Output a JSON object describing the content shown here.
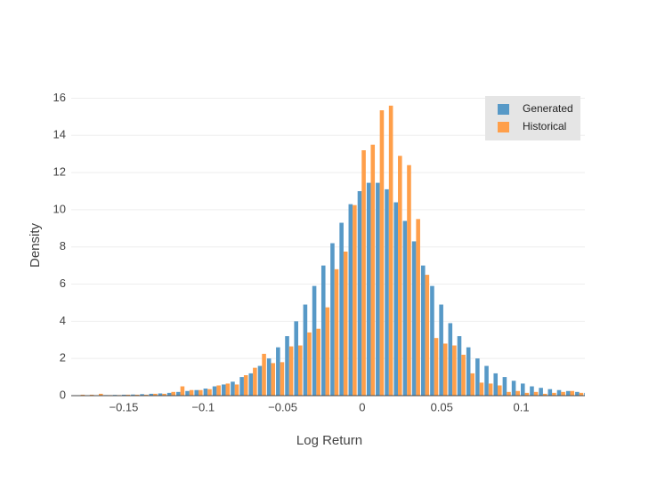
{
  "chart_data": {
    "type": "histogram",
    "x_label": "Log Return",
    "y_label": "Density",
    "bins": [
      -0.1799,
      -0.1742,
      -0.1685,
      -0.1628,
      -0.1571,
      -0.1514,
      -0.1457,
      -0.14,
      -0.1343,
      -0.1286,
      -0.1229,
      -0.1172,
      -0.1115,
      -0.1058,
      -0.1001,
      -0.0944,
      -0.0887,
      -0.083,
      -0.0773,
      -0.0716,
      -0.0659,
      -0.0602,
      -0.0545,
      -0.0488,
      -0.0431,
      -0.0374,
      -0.0317,
      -0.026,
      -0.0203,
      -0.0146,
      -0.0089,
      -0.0032,
      0.0025,
      0.0082,
      0.0139,
      0.0196,
      0.0253,
      0.031,
      0.0367,
      0.0424,
      0.0481,
      0.0538,
      0.0595,
      0.0652,
      0.0709,
      0.0766,
      0.0823,
      0.088,
      0.0937,
      0.0994,
      0.1051,
      0.1108,
      0.1165,
      0.1222,
      0.1279,
      0.1336,
      0.1393,
      0.145
    ],
    "series": [
      {
        "name": "Generated",
        "color": "#5799c7",
        "values": [
          0.01,
          0.02,
          0.02,
          0.03,
          0.04,
          0.05,
          0.06,
          0.08,
          0.1,
          0.12,
          0.15,
          0.2,
          0.25,
          0.3,
          0.38,
          0.5,
          0.6,
          0.75,
          1.0,
          1.2,
          1.6,
          2.0,
          2.6,
          3.2,
          4.0,
          4.9,
          5.9,
          7.0,
          8.2,
          9.3,
          10.3,
          11.0,
          11.45,
          11.45,
          11.1,
          10.4,
          9.4,
          8.3,
          7.0,
          5.9,
          4.9,
          3.9,
          3.2,
          2.6,
          2.0,
          1.6,
          1.2,
          1.0,
          0.8,
          0.65,
          0.5,
          0.42,
          0.35,
          0.3,
          0.25,
          0.2,
          0.15
        ]
      },
      {
        "name": "Historical",
        "color": "#ff9f4a",
        "values": [
          0.05,
          0.05,
          0.1,
          0.03,
          0.03,
          0.05,
          0.05,
          0.05,
          0.1,
          0.1,
          0.2,
          0.5,
          0.3,
          0.3,
          0.35,
          0.55,
          0.65,
          0.6,
          1.1,
          1.5,
          2.25,
          1.75,
          1.8,
          2.65,
          2.7,
          3.4,
          3.6,
          4.75,
          6.8,
          7.75,
          10.25,
          13.2,
          13.5,
          15.35,
          15.6,
          12.9,
          12.4,
          9.5,
          6.5,
          3.1,
          2.8,
          2.7,
          2.2,
          1.2,
          0.7,
          0.65,
          0.55,
          0.2,
          0.25,
          0.15,
          0.2,
          0.1,
          0.15,
          0.2,
          0.25,
          0.15,
          0.1
        ]
      }
    ],
    "xlim": [
      -0.183,
      0.14
    ],
    "xticks": [
      {
        "value": -0.15,
        "label": "−0.15"
      },
      {
        "value": -0.1,
        "label": "−0.1"
      },
      {
        "value": -0.05,
        "label": "−0.05"
      },
      0,
      0.05,
      0.1
    ],
    "ylim": [
      0,
      16.5
    ],
    "yticks": [
      0,
      2,
      4,
      6,
      8,
      10,
      12,
      14,
      16
    ],
    "grid": true,
    "legend": "top-right"
  }
}
